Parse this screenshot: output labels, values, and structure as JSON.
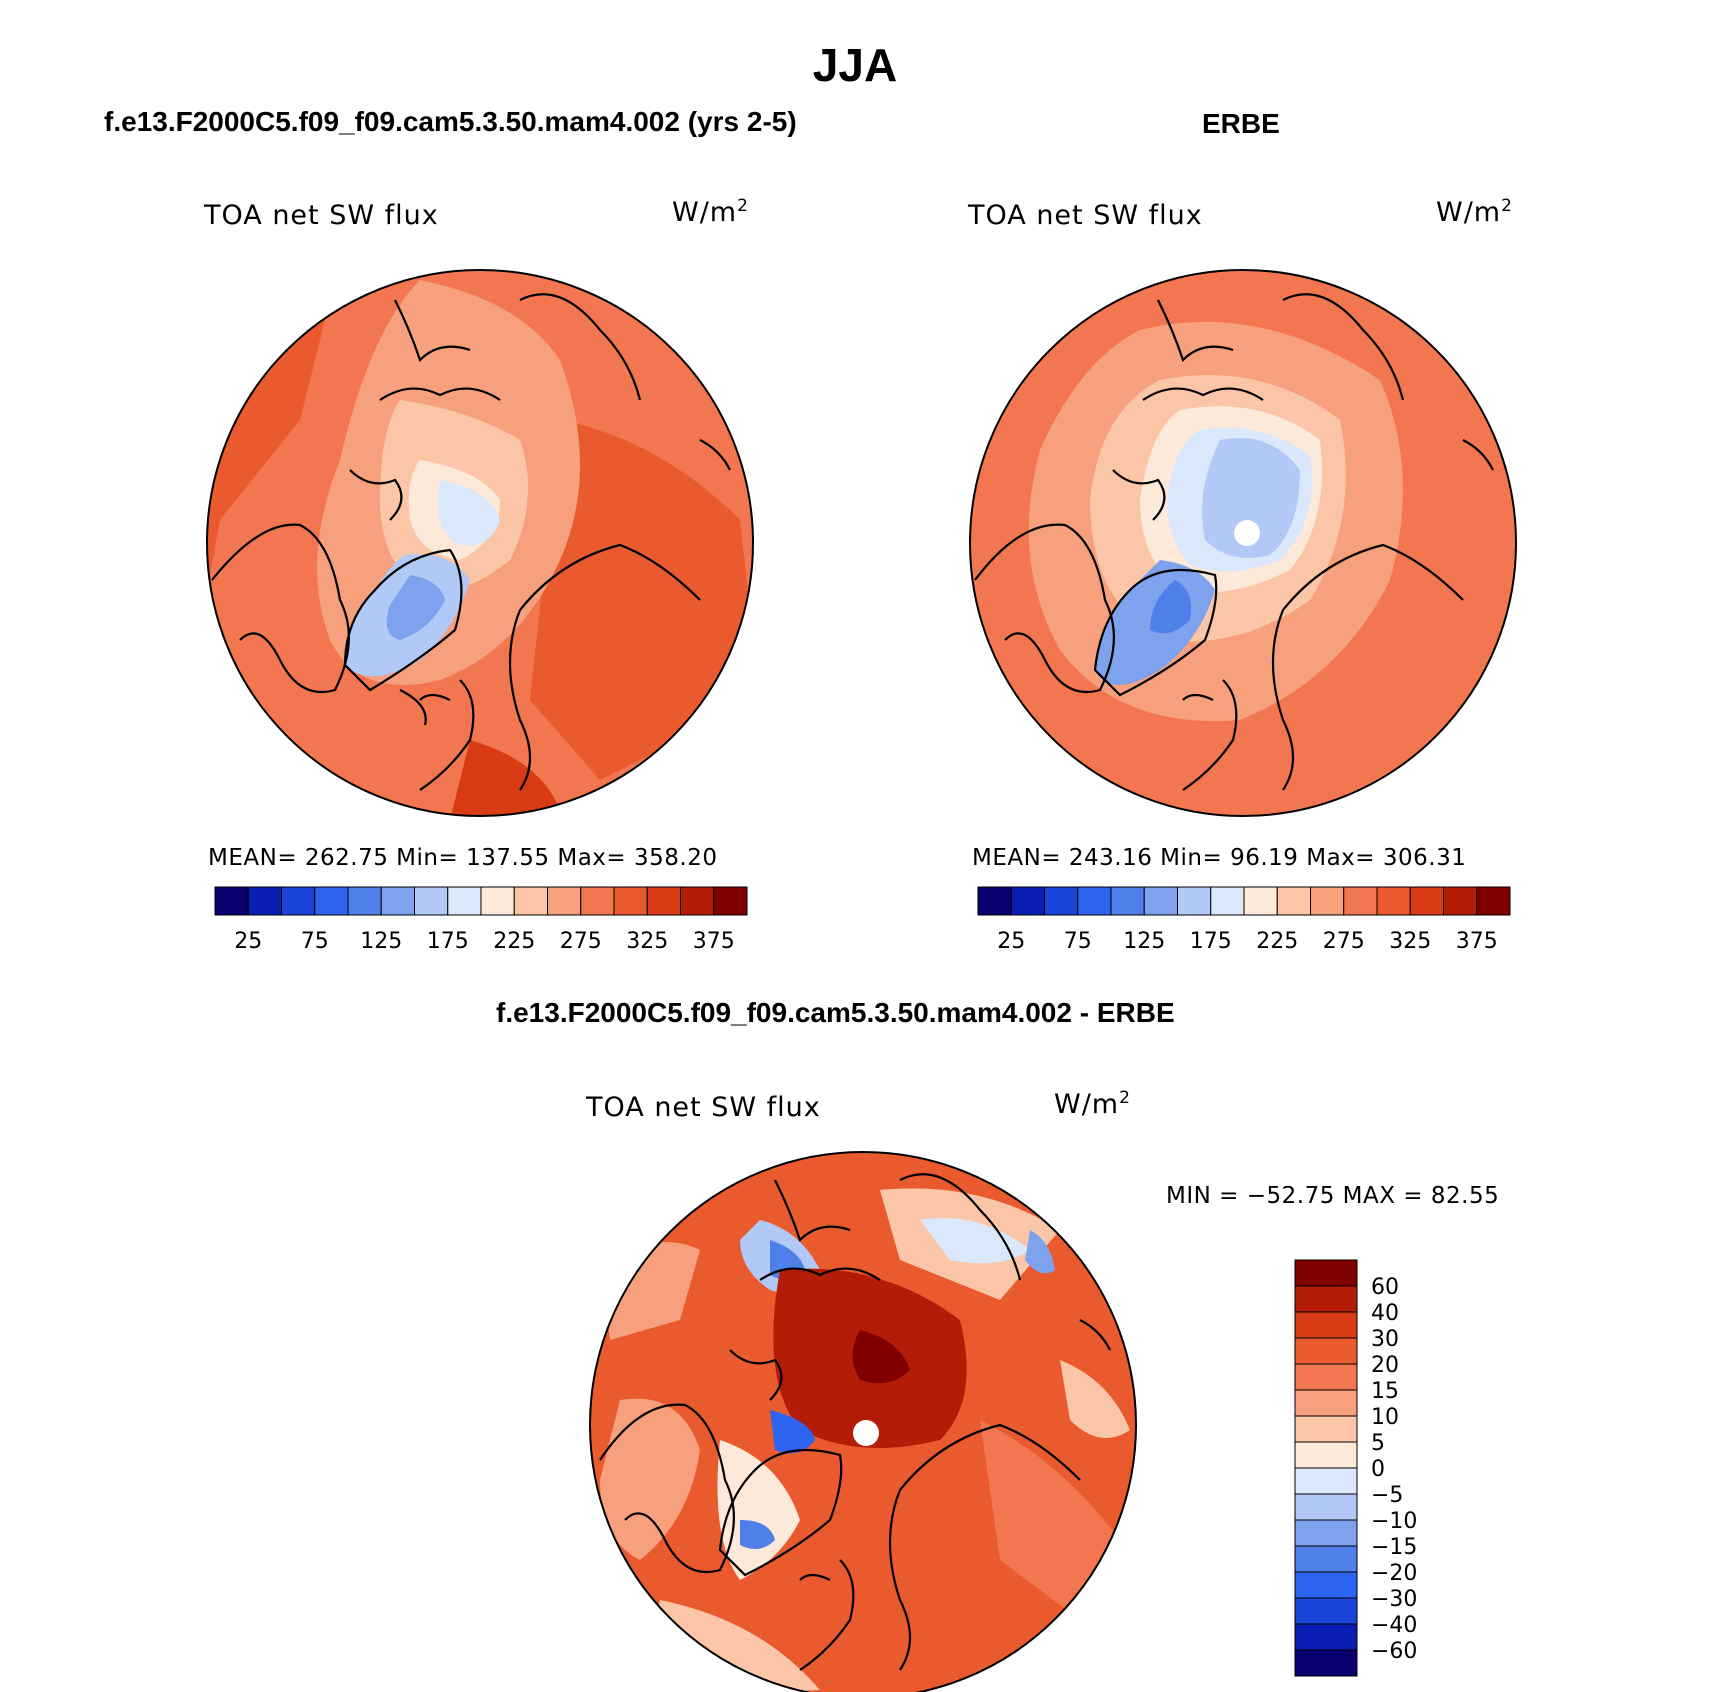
{
  "main_title": "JJA",
  "panels": {
    "model": {
      "title": "f.e13.F2000C5.f09_f09.cam5.3.50.mam4.002 (yrs 2-5)",
      "variable": "TOA net SW flux",
      "units_base": "W/m",
      "units_exp": "2",
      "stats": "MEAN= 262.75   Min= 137.55   Max= 358.20"
    },
    "obs": {
      "title": "ERBE",
      "variable": "TOA net SW flux",
      "units_base": "W/m",
      "units_exp": "2",
      "stats": "MEAN= 243.16   Min=   96.19   Max= 306.31"
    },
    "diff": {
      "title": "f.e13.F2000C5.f09_f09.cam5.3.50.mam4.002 - ERBE",
      "variable": "TOA net SW flux",
      "units_base": "W/m",
      "units_exp": "2",
      "stats": "MIN = −52.75 MAX =   82.55"
    }
  },
  "chart_data": [
    {
      "type": "heatmap",
      "projection": "north-polar-stereographic",
      "title": "f.e13.F2000C5.f09_f09.cam5.3.50.mam4.002 (yrs 2-5)",
      "variable": "TOA net SW flux",
      "units": "W/m2",
      "mean": 262.75,
      "min": 137.55,
      "max": 358.2,
      "colorbar_levels": [
        25,
        50,
        75,
        100,
        125,
        150,
        175,
        200,
        225,
        250,
        275,
        300,
        325,
        350,
        375
      ],
      "colorbar_tick_labels": [
        "25",
        "75",
        "125",
        "175",
        "225",
        "275",
        "325",
        "375"
      ],
      "colors": [
        "#08006e",
        "#0b1eb4",
        "#1a45d8",
        "#2d64f0",
        "#4f80ea",
        "#7fa2ee",
        "#b2c8f6",
        "#dbe7fb",
        "#fde9da",
        "#fbc6a8",
        "#f7a07d",
        "#f2764f",
        "#e95a2e",
        "#d93c14",
        "#b31d08",
        "#800000"
      ]
    },
    {
      "type": "heatmap",
      "projection": "north-polar-stereographic",
      "title": "ERBE",
      "variable": "TOA net SW flux",
      "units": "W/m2",
      "mean": 243.16,
      "min": 96.19,
      "max": 306.31,
      "colorbar_levels": [
        25,
        50,
        75,
        100,
        125,
        150,
        175,
        200,
        225,
        250,
        275,
        300,
        325,
        350,
        375
      ],
      "colorbar_tick_labels": [
        "25",
        "75",
        "125",
        "175",
        "225",
        "275",
        "325",
        "375"
      ],
      "colors": [
        "#08006e",
        "#0b1eb4",
        "#1a45d8",
        "#2d64f0",
        "#4f80ea",
        "#7fa2ee",
        "#b2c8f6",
        "#dbe7fb",
        "#fde9da",
        "#fbc6a8",
        "#f7a07d",
        "#f2764f",
        "#e95a2e",
        "#d93c14",
        "#b31d08",
        "#800000"
      ]
    },
    {
      "type": "heatmap",
      "projection": "north-polar-stereographic",
      "title": "f.e13.F2000C5.f09_f09.cam5.3.50.mam4.002 - ERBE",
      "variable": "TOA net SW flux",
      "units": "W/m2",
      "min": -52.75,
      "max": 82.55,
      "colorbar_tick_labels": [
        "60",
        "40",
        "30",
        "20",
        "15",
        "10",
        "5",
        "0",
        "−5",
        "−10",
        "−15",
        "−20",
        "−30",
        "−40",
        "−60"
      ],
      "colors": [
        "#800000",
        "#b31d08",
        "#d93c14",
        "#e95a2e",
        "#f2764f",
        "#f7a07d",
        "#fbc6a8",
        "#fde9da",
        "#dbe7fb",
        "#b2c8f6",
        "#7fa2ee",
        "#4f80ea",
        "#2d64f0",
        "#1a45d8",
        "#0b1eb4",
        "#08006e"
      ]
    }
  ]
}
